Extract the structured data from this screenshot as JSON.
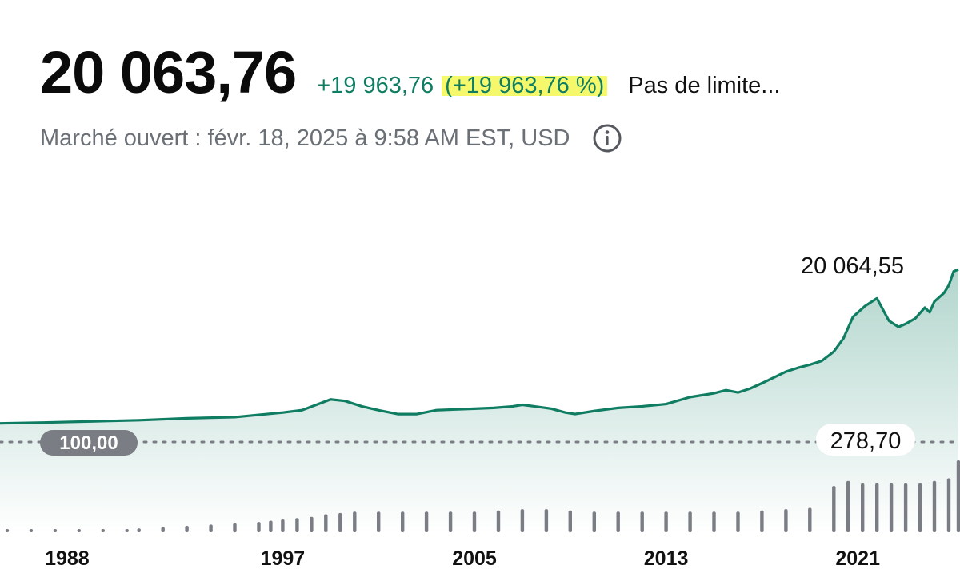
{
  "quote": {
    "price": "20 063,76",
    "change_abs": "+19 963,76",
    "change_pct": "(+19 963,76 %)",
    "range_label": "Pas de limite...",
    "market_status": "Marché ouvert : févr. 18, 2025 à 9:58 AM EST, USD",
    "info_icon": "info-circle-icon"
  },
  "colors": {
    "line": "#0f7d62",
    "highlight": "#f4f86a",
    "volume": "#7a7d83",
    "pill": "#7a7d83"
  },
  "chart_data": {
    "type": "line",
    "x_ticks": [
      "1988",
      "1997",
      "2005",
      "2013",
      "2021"
    ],
    "x_tick_years": [
      1988,
      1997,
      2005,
      2013,
      2021
    ],
    "xlim": [
      1985.2,
      2025.2
    ],
    "ylim": [
      -1800,
      20800
    ],
    "reference_value": "100,00",
    "max_label": "20 064,55",
    "series": [
      {
        "values": [
          [
            1985.2,
            100
          ],
          [
            1987.0,
            200
          ],
          [
            1989.0,
            350
          ],
          [
            1991.0,
            500
          ],
          [
            1993.0,
            750
          ],
          [
            1995.0,
            900
          ],
          [
            1996.0,
            1200
          ],
          [
            1997.0,
            1500
          ],
          [
            1997.8,
            1800
          ],
          [
            1998.4,
            2500
          ],
          [
            1999.0,
            3200
          ],
          [
            1999.6,
            3000
          ],
          [
            2000.3,
            2300
          ],
          [
            2001.0,
            1800
          ],
          [
            2001.8,
            1300
          ],
          [
            2002.6,
            1300
          ],
          [
            2003.4,
            1800
          ],
          [
            2004.2,
            1900
          ],
          [
            2005.0,
            2000
          ],
          [
            2005.8,
            2100
          ],
          [
            2006.6,
            2300
          ],
          [
            2007.0,
            2500
          ],
          [
            2007.5,
            2300
          ],
          [
            2008.2,
            2000
          ],
          [
            2008.8,
            1500
          ],
          [
            2009.2,
            1300
          ],
          [
            2010.0,
            1700
          ],
          [
            2011.0,
            2100
          ],
          [
            2012.0,
            2300
          ],
          [
            2013.0,
            2600
          ],
          [
            2014.0,
            3500
          ],
          [
            2015.0,
            4000
          ],
          [
            2015.5,
            4400
          ],
          [
            2016.0,
            4100
          ],
          [
            2016.5,
            4600
          ],
          [
            2017.0,
            5300
          ],
          [
            2018.0,
            6800
          ],
          [
            2018.5,
            7300
          ],
          [
            2019.0,
            7700
          ],
          [
            2019.5,
            8200
          ],
          [
            2020.0,
            9400
          ],
          [
            2020.4,
            11100
          ],
          [
            2020.8,
            13900
          ],
          [
            2021.3,
            15300
          ],
          [
            2021.8,
            16300
          ],
          [
            2022.3,
            13400
          ],
          [
            2022.7,
            12600
          ],
          [
            2023.0,
            13000
          ],
          [
            2023.4,
            13700
          ],
          [
            2023.8,
            15100
          ],
          [
            2024.0,
            14500
          ],
          [
            2024.2,
            15900
          ],
          [
            2024.6,
            17000
          ],
          [
            2024.8,
            18000
          ],
          [
            2025.0,
            19800
          ],
          [
            2025.2,
            20064
          ]
        ]
      }
    ],
    "volume": {
      "label": "278,70",
      "bars": [
        [
          1985.5,
          1
        ],
        [
          1986.5,
          1
        ],
        [
          1987.5,
          1
        ],
        [
          1988.5,
          1
        ],
        [
          1989.5,
          1
        ],
        [
          1990.5,
          1
        ],
        [
          1991.0,
          1.5
        ],
        [
          1992.0,
          2
        ],
        [
          1993.0,
          2.5
        ],
        [
          1994.0,
          3
        ],
        [
          1995.0,
          3.5
        ],
        [
          1996.0,
          4
        ],
        [
          1996.5,
          4.5
        ],
        [
          1997.0,
          5
        ],
        [
          1997.6,
          5.5
        ],
        [
          1998.2,
          6
        ],
        [
          1998.8,
          7
        ],
        [
          1999.4,
          7.5
        ],
        [
          2000.0,
          8
        ],
        [
          2001.0,
          8
        ],
        [
          2002.0,
          8
        ],
        [
          2003.0,
          8
        ],
        [
          2004.0,
          8
        ],
        [
          2005.0,
          8
        ],
        [
          2006.0,
          8.5
        ],
        [
          2007.0,
          9
        ],
        [
          2008.0,
          9
        ],
        [
          2009.0,
          8.5
        ],
        [
          2010.0,
          8
        ],
        [
          2011.0,
          8
        ],
        [
          2012.0,
          8
        ],
        [
          2013.0,
          8
        ],
        [
          2014.0,
          8
        ],
        [
          2015.0,
          8
        ],
        [
          2016.0,
          8
        ],
        [
          2017.0,
          8.5
        ],
        [
          2018.0,
          9
        ],
        [
          2019.0,
          9.5
        ],
        [
          2020.0,
          18
        ],
        [
          2020.6,
          20
        ],
        [
          2021.2,
          19
        ],
        [
          2021.8,
          19
        ],
        [
          2022.4,
          19
        ],
        [
          2023.0,
          19
        ],
        [
          2023.6,
          19
        ],
        [
          2024.2,
          20
        ],
        [
          2024.8,
          21
        ],
        [
          2025.2,
          28
        ]
      ]
    }
  }
}
